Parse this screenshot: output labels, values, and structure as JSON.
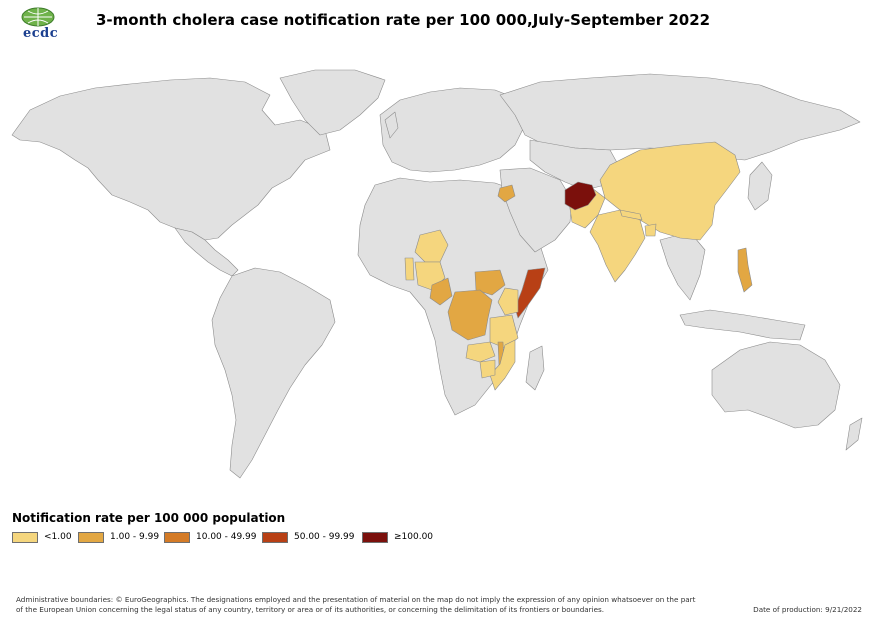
{
  "title": "3-month cholera case notification rate per 100 000,July-September 2022",
  "logo": {
    "text": "ecdc",
    "icon": "ecdc-globe-icon"
  },
  "colors": {
    "ocean": "#ffffff",
    "land": "#e1e1e1",
    "border": "#8c8c8c"
  },
  "legend": {
    "title": "Notification rate per 100 000 population",
    "items": [
      {
        "label": "<1.00",
        "color": "#f5d67e"
      },
      {
        "label": "1.00 - 9.99",
        "color": "#e2a743"
      },
      {
        "label": "10.00 - 49.99",
        "color": "#d47b27"
      },
      {
        "label": "50.00 - 99.99",
        "color": "#b84015"
      },
      {
        "label": "≥100.00",
        "color": "#7b100c"
      }
    ]
  },
  "map_data": {
    "countries": [
      {
        "id": "afghanistan",
        "cls": 4
      },
      {
        "id": "somalia",
        "cls": 3
      },
      {
        "id": "syria",
        "cls": 1
      },
      {
        "id": "dr-congo",
        "cls": 1
      },
      {
        "id": "cameroon",
        "cls": 1
      },
      {
        "id": "south-sudan",
        "cls": 1
      },
      {
        "id": "malawi",
        "cls": 1
      },
      {
        "id": "philippines",
        "cls": 1
      },
      {
        "id": "china",
        "cls": 0
      },
      {
        "id": "india",
        "cls": 0
      },
      {
        "id": "pakistan",
        "cls": 0
      },
      {
        "id": "nepal",
        "cls": 0
      },
      {
        "id": "bangladesh",
        "cls": 0
      },
      {
        "id": "niger",
        "cls": 0
      },
      {
        "id": "nigeria",
        "cls": 0
      },
      {
        "id": "benin",
        "cls": 0
      },
      {
        "id": "kenya",
        "cls": 0
      },
      {
        "id": "tanzania",
        "cls": 0
      },
      {
        "id": "zambia",
        "cls": 0
      },
      {
        "id": "mozambique",
        "cls": 0
      },
      {
        "id": "zimbabwe",
        "cls": 0
      }
    ]
  },
  "footer": {
    "disclaimer": "Administrative boundaries: © EuroGeographics. The designations employed and the presentation of material on the map do not imply the expression of any opinion whatsoever on the part of the European Union concerning the legal status of any country, territory or area or of its authorities, or concerning the delimitation of its frontiers or boundaries.",
    "date": "Date of production: 9/21/2022"
  }
}
